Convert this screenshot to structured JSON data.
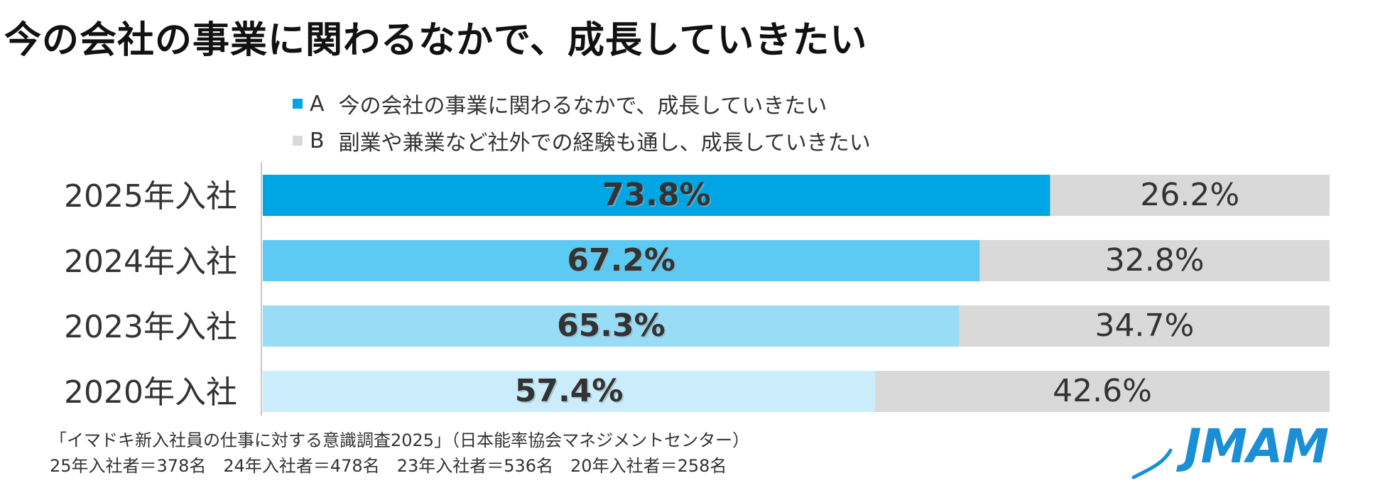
{
  "title": "今の会社の事業に関わるなかで、成長していきたい",
  "legend": {
    "a_key": "A",
    "a_label": "今の会社の事業に関わるなかで、成長していきたい",
    "b_key": "B",
    "b_label": "副業や兼業など社外での経験も通し、成長していきたい"
  },
  "colors": {
    "a_2025": "#00a5e3",
    "a_2024": "#5ccaf3",
    "a_2023": "#99dcf6",
    "a_2020": "#cbedfb",
    "b": "#d9d9d9",
    "label_dark": "#333333",
    "logo": "#1b8fd6"
  },
  "chart_data": {
    "type": "bar",
    "orientation": "horizontal",
    "stacked": true,
    "percent_stacked": true,
    "categories": [
      "2025年入社",
      "2024年入社",
      "2023年入社",
      "2020年入社"
    ],
    "series": [
      {
        "name": "A 今の会社の事業に関わるなかで、成長していきたい",
        "values": [
          73.8,
          67.2,
          65.3,
          57.4
        ],
        "labels": [
          "73.8%",
          "67.2%",
          "65.3%",
          "57.4%"
        ]
      },
      {
        "name": "B 副業や兼業など社外での経験も通し、成長していきたい",
        "values": [
          26.2,
          32.8,
          34.7,
          42.6
        ],
        "labels": [
          "26.2%",
          "32.8%",
          "34.7%",
          "42.6%"
        ]
      }
    ],
    "xlim": [
      0,
      100
    ],
    "title": "今の会社の事業に関わるなかで、成長していきたい",
    "legend_position": "top"
  },
  "footnote": {
    "line1": "「イマドキ新入社員の仕事に対する意識調査2025」（日本能率協会マネジメントセンター）",
    "line2": "25年入社者＝378名　24年入社者＝478名　23年入社者＝536名　20年入社者＝258名"
  },
  "logo": {
    "text": "JMAM"
  }
}
